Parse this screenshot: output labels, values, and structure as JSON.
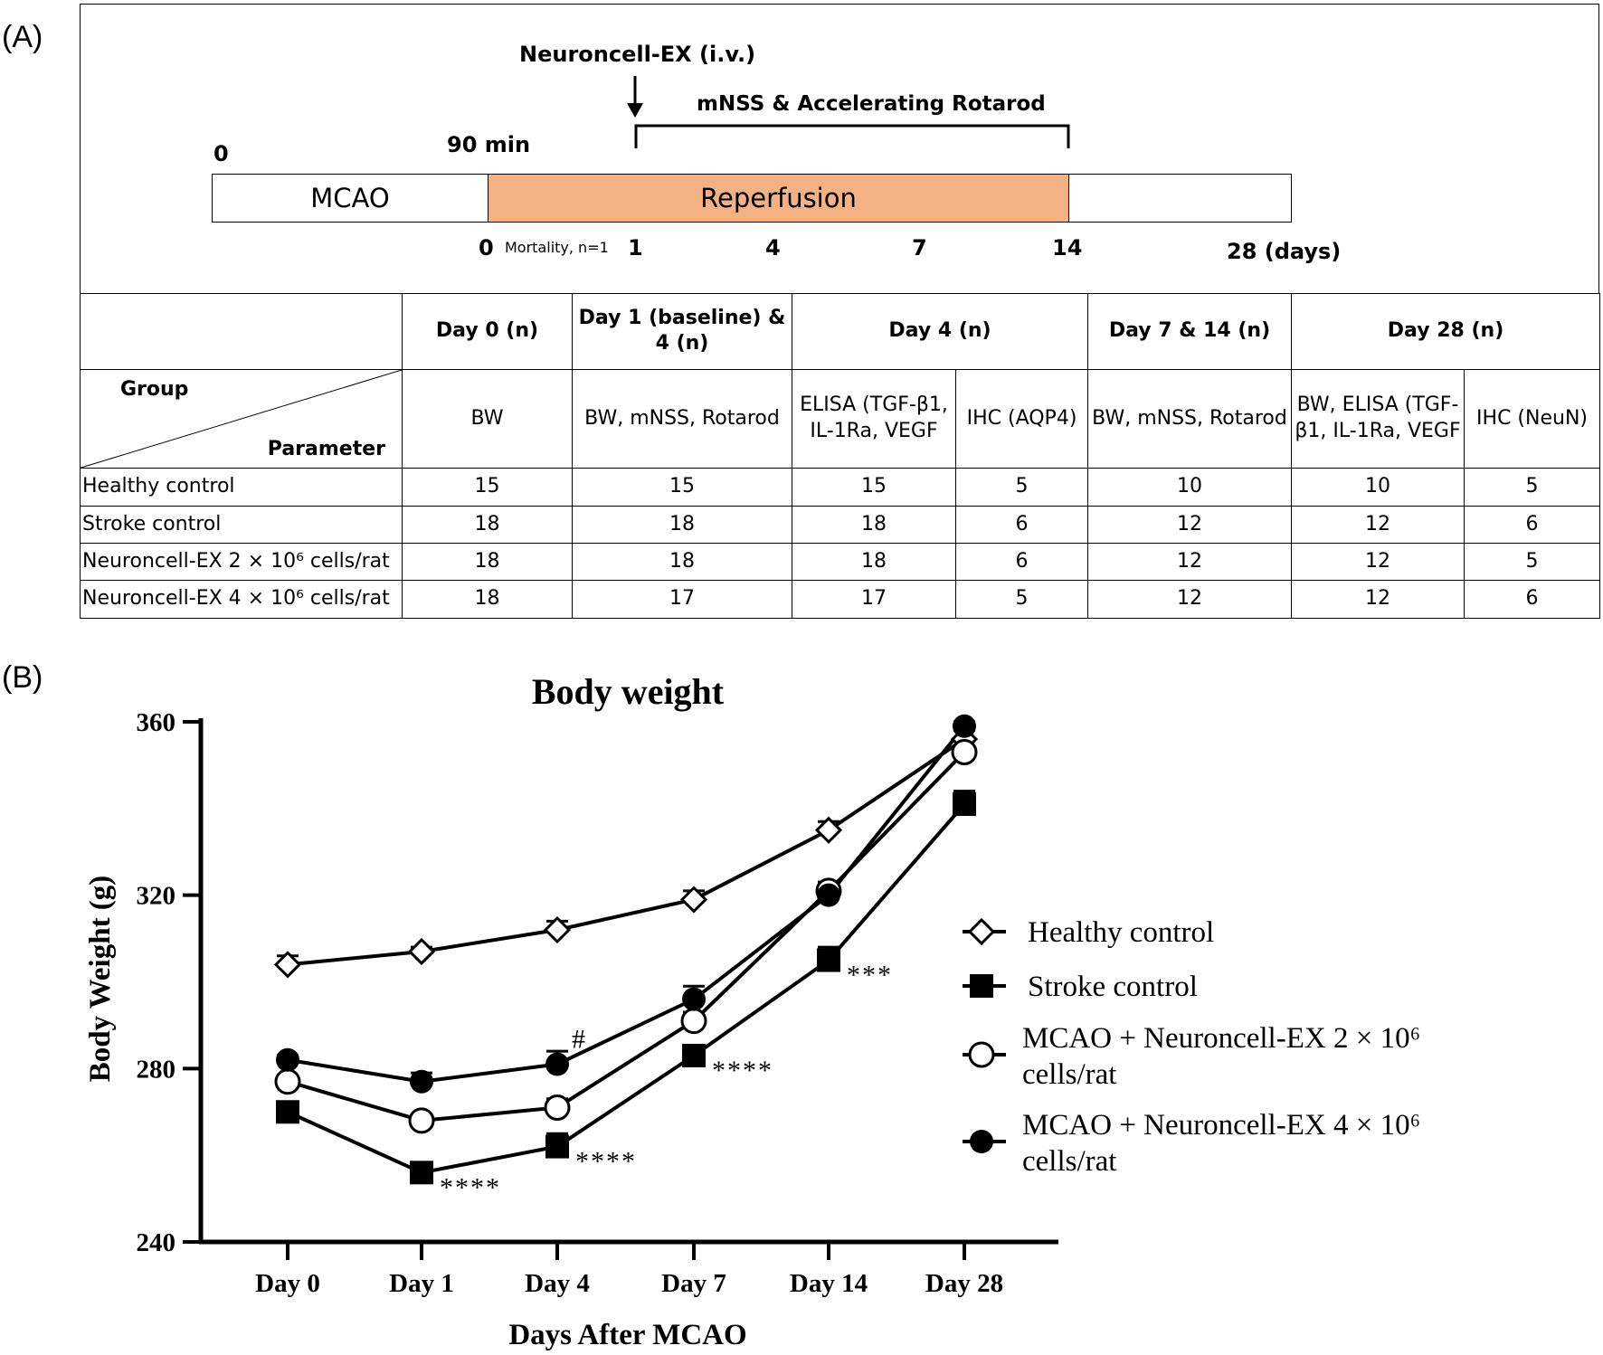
{
  "panels": {
    "a": "(A)",
    "b": "(B)"
  },
  "timeline": {
    "injection_label": "Neuroncell-EX (i.v.)",
    "assessment_label": "mNSS & Accelerating Rotarod",
    "start_label": "0",
    "occlusion_duration": "90 min",
    "phase1": "MCAO",
    "phase2": "Reperfusion",
    "day_ticks": [
      "0",
      "1",
      "4",
      "7",
      "14",
      "28 (days)"
    ],
    "mortality_note": "Mortality, n=1",
    "colors": {
      "reperfusion": "#f4b183"
    }
  },
  "schedule_table": {
    "corner_group": "Group",
    "corner_parameter": "Parameter",
    "time_headers": [
      "Day 0 (n)",
      "Day 1 (baseline) & 4 (n)",
      "Day 4 (n)",
      "Day 7 & 14 (n)",
      "Day 28 (n)"
    ],
    "parameters": [
      "BW",
      "BW, mNSS, Rotarod",
      "ELISA (TGF-β1, IL-1Ra, VEGF",
      "IHC (AQP4)",
      "BW, mNSS, Rotarod",
      "BW, ELISA (TGF-β1, IL-1Ra, VEGF",
      "IHC (NeuN)"
    ],
    "rows": [
      {
        "group": "Healthy control",
        "values": [
          "15",
          "15",
          "15",
          "5",
          "10",
          "10",
          "5"
        ]
      },
      {
        "group": "Stroke control",
        "values": [
          "18",
          "18",
          "18",
          "6",
          "12",
          "12",
          "6"
        ]
      },
      {
        "group": "Neuroncell-EX 2 × 10⁶ cells/rat",
        "values": [
          "18",
          "18",
          "18",
          "6",
          "12",
          "12",
          "5"
        ]
      },
      {
        "group": "Neuroncell-EX 4 × 10⁶ cells/rat",
        "values": [
          "18",
          "17",
          "17",
          "5",
          "12",
          "12",
          "6"
        ]
      }
    ]
  },
  "chart_data": {
    "type": "line",
    "title": "Body weight",
    "xlabel": "Days After MCAO",
    "ylabel": "Body Weight (g)",
    "categories": [
      "Day 0",
      "Day 1",
      "Day 4",
      "Day 7",
      "Day 14",
      "Day 28"
    ],
    "ylim": [
      240,
      360
    ],
    "yticks": [
      240,
      280,
      320,
      360
    ],
    "legend_position": "right",
    "series": [
      {
        "name": "Healthy control",
        "marker": "open-diamond",
        "values": [
          304,
          307,
          312,
          319,
          335,
          356
        ],
        "errors": [
          2,
          1,
          2,
          2,
          2,
          2
        ]
      },
      {
        "name": "Stroke control",
        "marker": "filled-square",
        "values": [
          270,
          256,
          262,
          283,
          305,
          341
        ],
        "errors": [
          1,
          1,
          3,
          2,
          3,
          3
        ]
      },
      {
        "name": "MCAO + Neuroncell-EX 2 × 10⁶ cells/rat",
        "marker": "open-circle",
        "values": [
          277,
          268,
          271,
          291,
          321,
          353
        ],
        "errors": [
          1,
          1,
          2,
          2,
          2,
          1
        ]
      },
      {
        "name": "MCAO + Neuroncell-EX 4 × 10⁶ cells/rat",
        "marker": "filled-circle",
        "values": [
          282,
          277,
          281,
          296,
          320,
          359
        ],
        "errors": [
          1,
          2,
          3,
          3,
          3,
          1
        ]
      }
    ],
    "annotations": [
      {
        "text": "****",
        "series": 1,
        "index": 1
      },
      {
        "text": "****",
        "series": 1,
        "index": 2
      },
      {
        "text": "****",
        "series": 1,
        "index": 3
      },
      {
        "text": "***",
        "series": 1,
        "index": 4
      },
      {
        "text": "#",
        "series": 3,
        "index": 2
      }
    ]
  }
}
